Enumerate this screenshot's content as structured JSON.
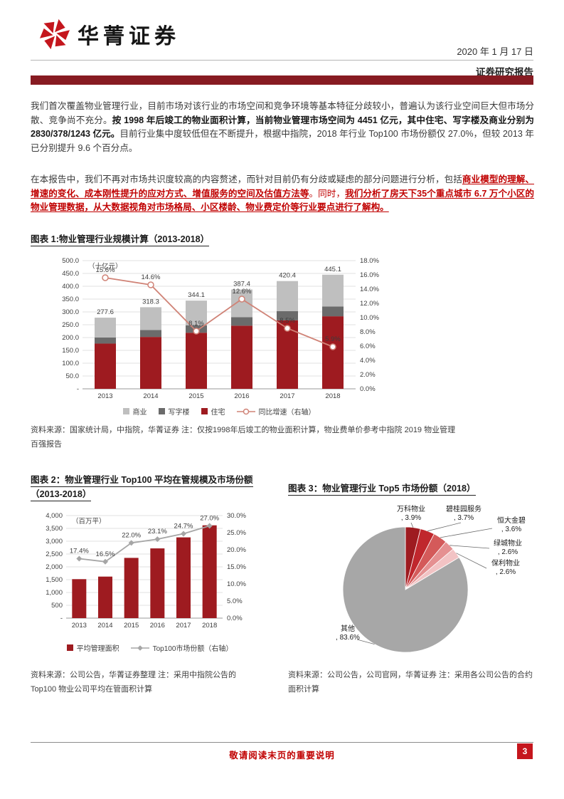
{
  "header": {
    "brand": "华菁证券",
    "date": "2020 年 1 月 17 日",
    "report_type": "证券研究报告"
  },
  "paragraphs": {
    "p1_seg1": "我们首次覆盖物业管理行业，目前市场对该行业的市场空间和竞争环境等基本特征分歧较小，普遍认为该行业空间巨大但市场分散、竞争尚不充分。",
    "p1_seg2": "按 1998 年后竣工的物业面积计算，当前物业管理市场空间为 4451 亿元，其中住宅、写字楼及商业分别为 2830/378/1243 亿元。",
    "p1_seg3": "目前行业集中度较低但在不断提升，根据中指院，2018 年行业 Top100 市场份额仅 27.0%，但较 2013 年已分别提升 9.6 个百分点。",
    "p2_seg1": "在本报告中，我们不再对市场共识度较高的内容赘述，而针对目前仍有分歧或疑虑的部分问题进行分析，包括",
    "p2_seg2": "商业模型的理解、增速的变化、成本刚性提升的应对方式、增值服务的空间及估值方法等",
    "p2_seg3": "。同时，",
    "p2_seg4": "我们分析了房天下35个重点城市 6.7 万个小区的物业管理数据，从大数据视角对市场格局、小区楼龄、物业费定价等行业要点进行了解构。"
  },
  "chart_data": [
    {
      "id": "fig1",
      "type": "bar+line",
      "title": "图表 1:物业管理行业规模计算（2013-2018）",
      "unit_left": "（十亿元）",
      "categories": [
        "2013",
        "2014",
        "2015",
        "2016",
        "2017",
        "2018"
      ],
      "bar_series": [
        {
          "name": "住宅",
          "color": "#9E1B20",
          "values": [
            176.5,
            202.4,
            218.8,
            246.3,
            267.3,
            283.0
          ]
        },
        {
          "name": "写字楼",
          "color": "#6B6B6B",
          "values": [
            23.6,
            27.0,
            29.2,
            32.9,
            35.7,
            37.8
          ]
        },
        {
          "name": "商业",
          "color": "#BFBFBF",
          "values": [
            77.5,
            88.9,
            96.1,
            108.2,
            117.4,
            124.3
          ]
        }
      ],
      "line_series": {
        "name": "同比增速（右轴）",
        "color": "#D08377",
        "values": [
          15.6,
          14.6,
          8.1,
          12.6,
          8.5,
          5.9
        ]
      },
      "totals": [
        277.6,
        318.3,
        344.1,
        387.4,
        420.4,
        445.1
      ],
      "ylim_left": [
        0,
        500
      ],
      "yticks_left": [
        "500.0",
        "450.0",
        "400.0",
        "350.0",
        "300.0",
        "250.0",
        "200.0",
        "150.0",
        "100.0",
        "50.0",
        "-"
      ],
      "ylim_right": [
        0,
        18
      ],
      "yticks_right": [
        "18.0%",
        "16.0%",
        "14.0%",
        "12.0%",
        "10.0%",
        "8.0%",
        "6.0%",
        "4.0%",
        "2.0%",
        "0.0%"
      ],
      "legend": [
        {
          "label": "商业",
          "color": "#BFBFBF",
          "marker": "box"
        },
        {
          "label": "写字楼",
          "color": "#6B6B6B",
          "marker": "box"
        },
        {
          "label": "住宅",
          "color": "#9E1B20",
          "marker": "box"
        },
        {
          "label": "同比增速（右轴）",
          "color": "#D08377",
          "marker": "line-circle"
        }
      ],
      "source": "资料来源：国家统计局，中指院，华菁证券 注：仅按1998年后竣工的物业面积计算，物业费单价参考中指院 2019 物业管理百强报告"
    },
    {
      "id": "fig2",
      "type": "bar+line",
      "title": "图表 2：物业管理行业 Top100 平均在管规模及市场份额（2013-2018）",
      "unit_left": "（百万平）",
      "categories": [
        "2013",
        "2014",
        "2015",
        "2016",
        "2017",
        "2018"
      ],
      "bar_series": [
        {
          "name": "平均管理面积",
          "color": "#9E1B20",
          "values": [
            1520,
            1620,
            2350,
            2720,
            3150,
            3620
          ]
        }
      ],
      "line_series": {
        "name": "Top100市场份额（右轴）",
        "color": "#A6A6A6",
        "values": [
          17.4,
          16.5,
          22.0,
          23.1,
          24.7,
          27.0
        ]
      },
      "ylim_left": [
        0,
        4000
      ],
      "yticks_left": [
        "4,000",
        "3,500",
        "3,000",
        "2,500",
        "2,000",
        "1,500",
        "1,000",
        "500",
        "-"
      ],
      "ylim_right": [
        0,
        30
      ],
      "yticks_right": [
        "30.0%",
        "25.0%",
        "20.0%",
        "15.0%",
        "10.0%",
        "5.0%",
        "0.0%"
      ],
      "legend": [
        {
          "label": "平均管理面积",
          "color": "#9E1B20",
          "marker": "box"
        },
        {
          "label": "Top100市场份额（右轴）",
          "color": "#A6A6A6",
          "marker": "line-diamond"
        }
      ],
      "source": "资料来源：公司公告，华菁证券整理 注：采用中指院公告的 Top100 物业公司平均在管面积计算"
    },
    {
      "id": "fig3",
      "type": "pie",
      "title": "图表 3：物业管理行业 Top5 市场份额（2018）",
      "slices": [
        {
          "label": "万科物业",
          "value": 3.9,
          "color": "#9E1B20"
        },
        {
          "label": "碧桂园服务",
          "value": 3.7,
          "color": "#C0272D"
        },
        {
          "label": "恒大金碧",
          "value": 3.6,
          "color": "#D45A5A"
        },
        {
          "label": "绿城物业",
          "value": 2.6,
          "color": "#E59091"
        },
        {
          "label": "保利物业",
          "value": 2.6,
          "color": "#F2C3C4"
        },
        {
          "label": "其他",
          "value": 83.6,
          "color": "#A7A7A7"
        }
      ],
      "source": "资料来源：公司公告，公司官网，华菁证券 注：采用各公司公告的合约面积计算"
    }
  ],
  "footer": {
    "notice": "敬请阅读末页的重要说明",
    "page_number": "3"
  }
}
